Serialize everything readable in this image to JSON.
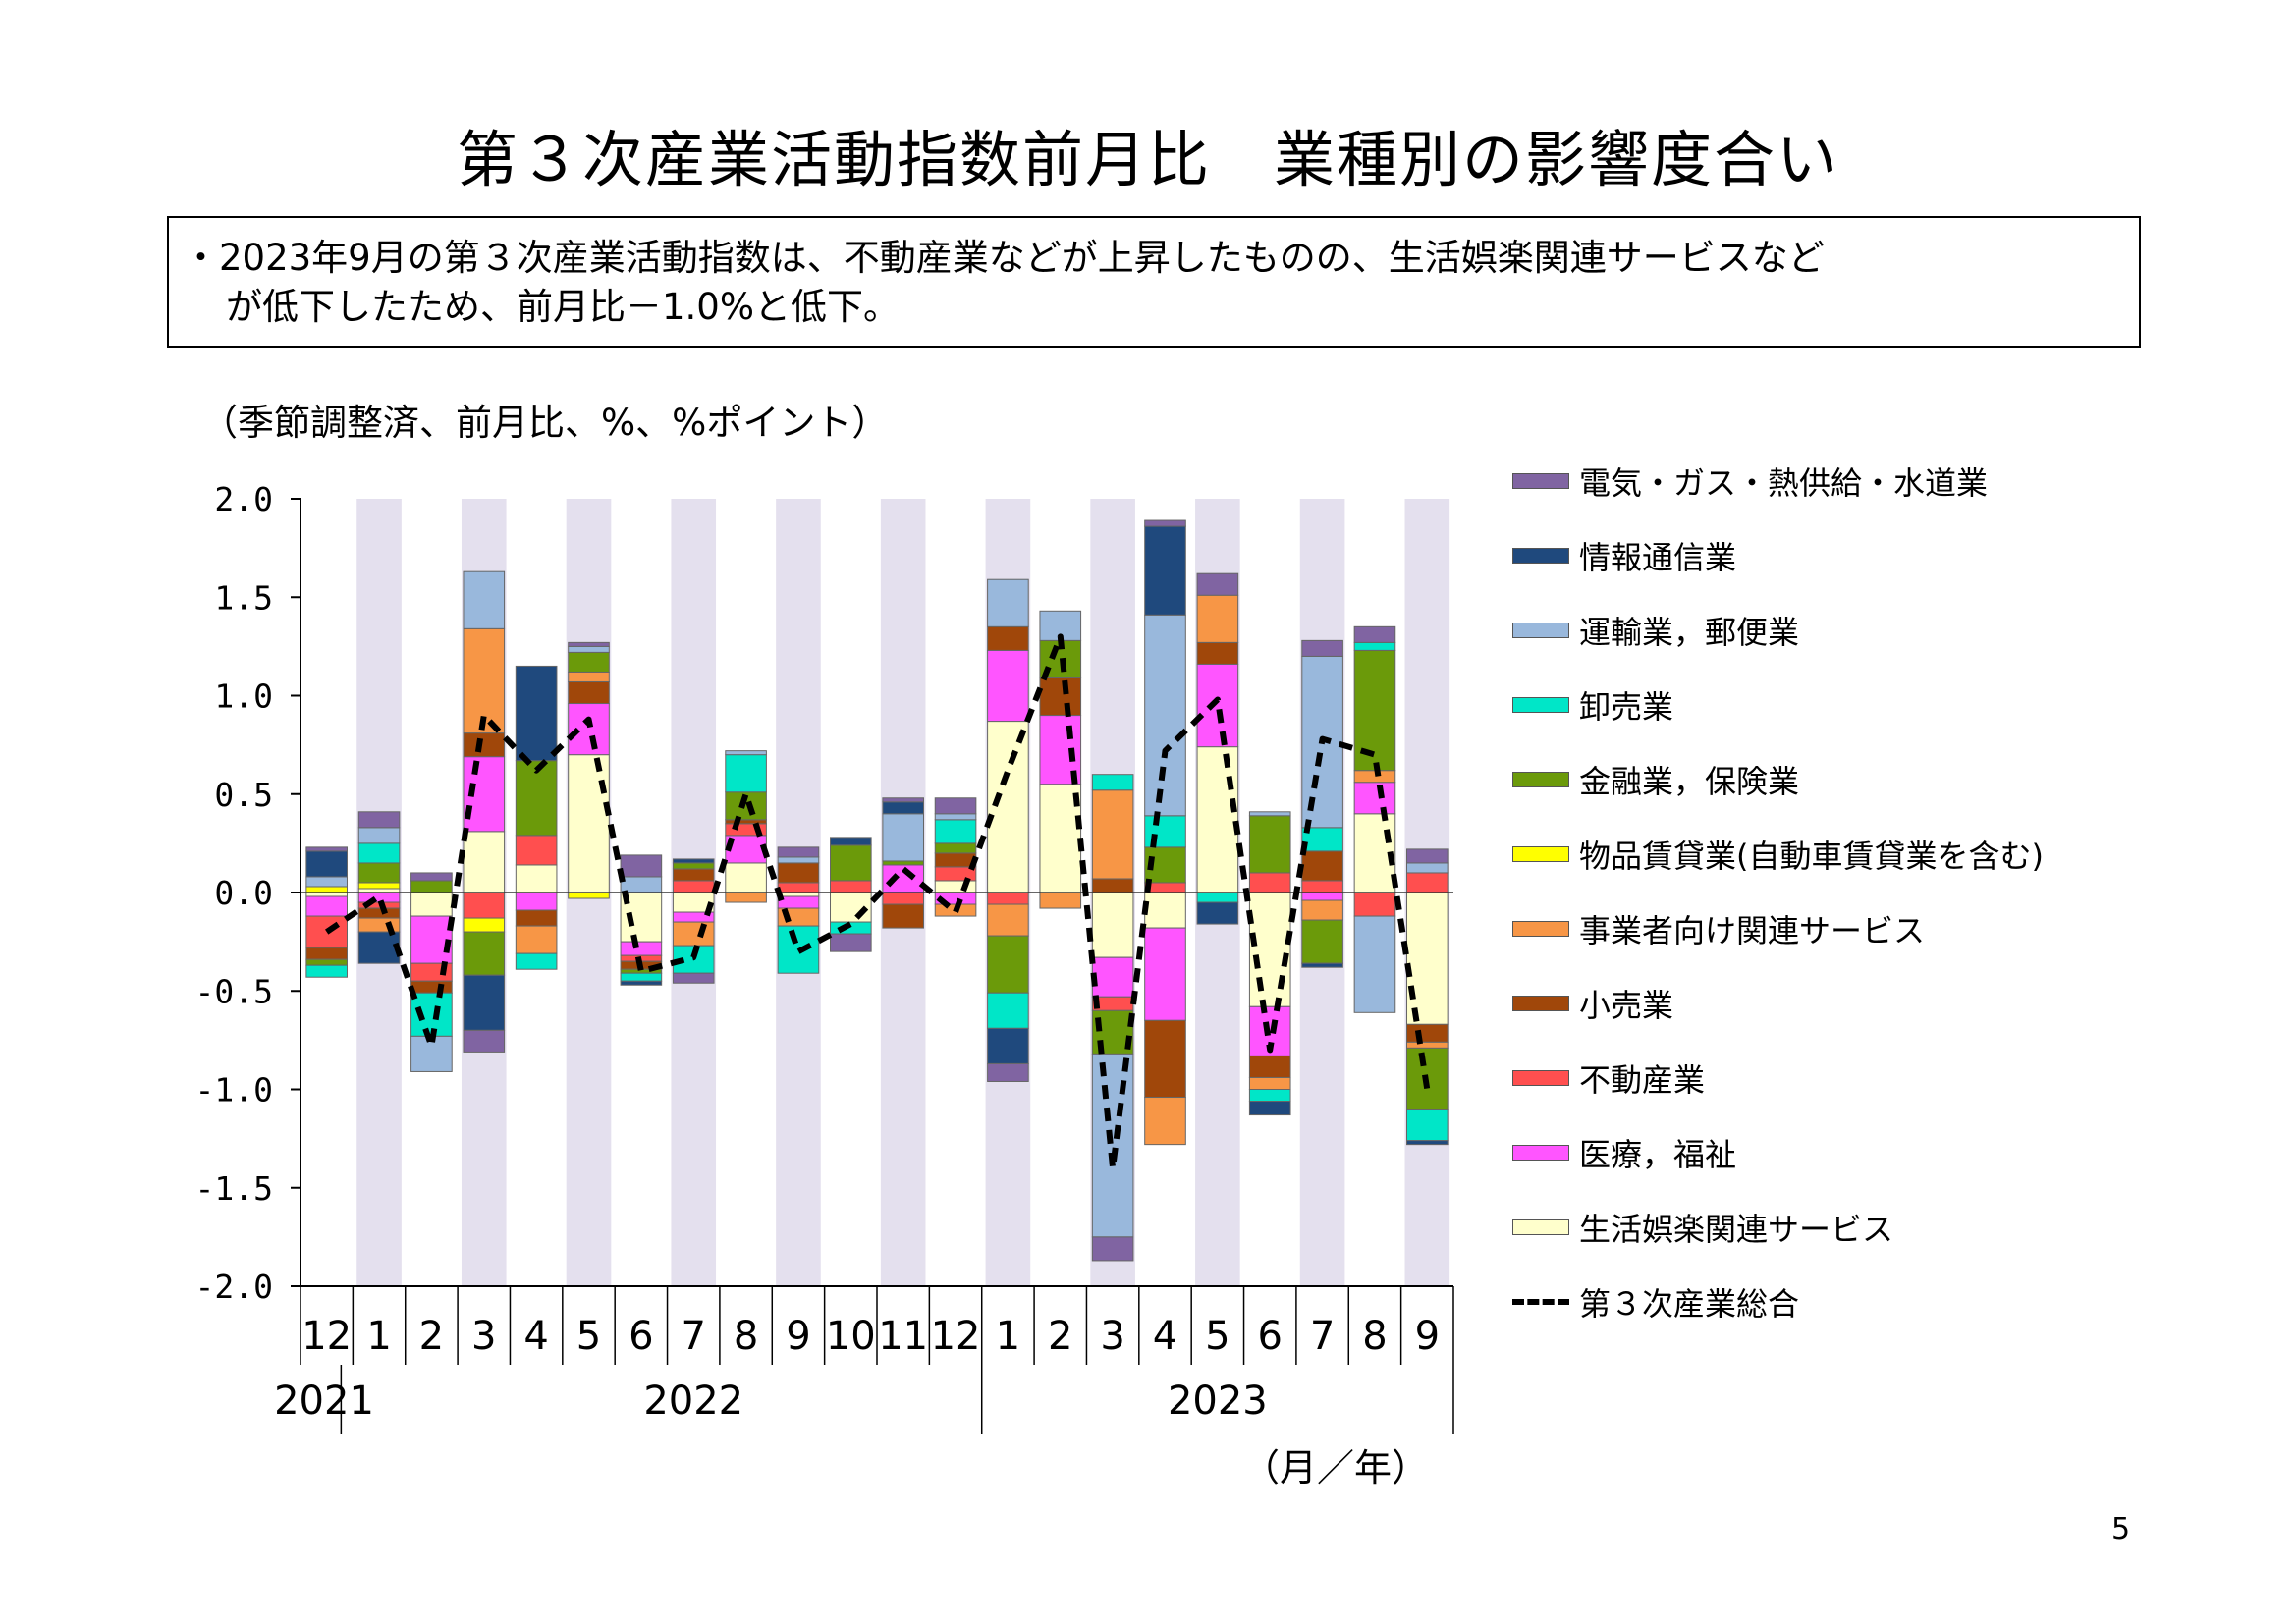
{
  "title": "第３次産業活動指数前月比　業種別の影響度合い",
  "summary": {
    "line1": "・2023年9月の第３次産業活動指数は、不動産業などが上昇したものの、生活娯楽関連サービスなど",
    "line2": "が低下したため、前月比－1.0%と低下。"
  },
  "unit_label": "（季節調整済、前月比、%、%ポイント）",
  "page_number": "5",
  "chart_data": {
    "type": "bar",
    "stacked": true,
    "title": "第３次産業活動指数前月比　業種別の影響度合い",
    "ylim": [
      -2.0,
      2.0
    ],
    "y_ticks": [
      "2.0",
      "1.5",
      "1.0",
      "0.5",
      "0.0",
      "-0.5",
      "-1.0",
      "-1.5",
      "-2.0"
    ],
    "categories": [
      "12",
      "1",
      "2",
      "3",
      "4",
      "5",
      "6",
      "7",
      "8",
      "9",
      "10",
      "11",
      "12",
      "1",
      "2",
      "3",
      "4",
      "5",
      "6",
      "7",
      "8",
      "9"
    ],
    "year_labels": [
      {
        "label": "2021",
        "index": 0
      },
      {
        "label": "2022",
        "index": 7
      },
      {
        "label": "2023",
        "index": 17
      }
    ],
    "x_unit": "（月／年）",
    "series": [
      {
        "name": "生活娯楽関連サービス",
        "color": "#FFFFCC",
        "values": [
          -0.02,
          0.02,
          -0.12,
          0.31,
          0.14,
          0.7,
          -0.25,
          -0.1,
          0.15,
          -0.02,
          -0.15,
          0.0,
          0.06,
          0.87,
          0.55,
          -0.33,
          -0.18,
          0.74,
          -0.58,
          0.0,
          0.4,
          -0.67
        ]
      },
      {
        "name": "医療，福祉",
        "color": "#FF55FF",
        "values": [
          -0.1,
          -0.05,
          -0.24,
          0.38,
          -0.09,
          0.26,
          -0.07,
          -0.05,
          0.14,
          -0.06,
          0.0,
          0.14,
          -0.06,
          0.36,
          0.35,
          -0.2,
          -0.47,
          0.42,
          -0.25,
          -0.04,
          0.16,
          0.0
        ]
      },
      {
        "name": "不動産業",
        "color": "#FF4F4F",
        "values": [
          -0.16,
          -0.03,
          -0.09,
          -0.13,
          0.15,
          0.0,
          -0.03,
          0.06,
          0.06,
          0.05,
          0.06,
          -0.06,
          0.07,
          -0.06,
          0.0,
          -0.07,
          0.05,
          0.0,
          0.1,
          0.06,
          -0.12,
          0.1
        ]
      },
      {
        "name": "小売業",
        "color": "#A0470A",
        "values": [
          -0.06,
          -0.05,
          -0.06,
          0.12,
          -0.08,
          0.11,
          -0.04,
          0.06,
          0.02,
          0.1,
          0.0,
          -0.12,
          0.07,
          0.12,
          0.19,
          0.07,
          -0.39,
          0.11,
          -0.11,
          0.15,
          0.0,
          -0.09
        ]
      },
      {
        "name": "事業者向け関連サービス",
        "color": "#F79646",
        "values": [
          0.0,
          -0.07,
          0.0,
          0.53,
          -0.14,
          0.05,
          0.0,
          -0.12,
          -0.05,
          -0.09,
          0.0,
          0.0,
          -0.06,
          -0.16,
          -0.08,
          0.45,
          -0.24,
          0.24,
          -0.06,
          -0.1,
          0.06,
          -0.03
        ]
      },
      {
        "name": "物品賃貸業（自動車賃貸業を含む）",
        "color": "#FFFF00",
        "values": [
          0.03,
          0.03,
          0.0,
          -0.07,
          0.0,
          -0.03,
          0.0,
          0.0,
          0.0,
          0.0,
          0.0,
          0.0,
          0.0,
          0.0,
          0.0,
          0.0,
          0.0,
          0.0,
          0.0,
          0.0,
          0.0,
          0.0
        ]
      },
      {
        "name": "金融業，保険業",
        "color": "#6B9A0A",
        "values": [
          -0.03,
          0.1,
          0.06,
          -0.22,
          0.38,
          0.1,
          -0.02,
          0.03,
          0.14,
          0.0,
          0.18,
          0.02,
          0.05,
          -0.29,
          0.19,
          -0.22,
          0.18,
          0.0,
          0.29,
          -0.22,
          0.61,
          -0.31
        ]
      },
      {
        "name": "卸売業",
        "color": "#00E6C8",
        "values": [
          -0.06,
          0.1,
          -0.22,
          0.0,
          -0.08,
          0.0,
          -0.04,
          -0.14,
          0.19,
          -0.24,
          -0.06,
          0.0,
          0.12,
          -0.18,
          0.0,
          0.08,
          0.16,
          -0.05,
          -0.06,
          0.12,
          0.04,
          -0.16
        ]
      },
      {
        "name": "運輸業，郵便業",
        "color": "#99B8DC",
        "values": [
          0.05,
          0.08,
          -0.18,
          0.29,
          0.0,
          0.03,
          0.08,
          0.0,
          0.02,
          0.03,
          0.0,
          0.24,
          0.03,
          0.24,
          0.15,
          -0.93,
          1.02,
          0.0,
          0.02,
          0.87,
          -0.49,
          0.05
        ]
      },
      {
        "name": "情報通信業",
        "color": "#1F497D",
        "values": [
          0.13,
          -0.16,
          0.0,
          -0.28,
          0.48,
          0.0,
          -0.02,
          0.02,
          0.0,
          0.0,
          0.04,
          0.06,
          0.0,
          -0.18,
          0.0,
          0.0,
          0.45,
          -0.11,
          -0.07,
          -0.02,
          0.0,
          -0.02
        ]
      },
      {
        "name": "電気・ガス・熱供給・水道業",
        "color": "#8064A2",
        "values": [
          0.02,
          0.08,
          0.04,
          -0.11,
          0.0,
          0.02,
          0.11,
          -0.05,
          0.0,
          0.05,
          -0.09,
          0.02,
          0.08,
          -0.09,
          0.0,
          -0.12,
          0.03,
          0.11,
          0.0,
          0.08,
          0.08,
          0.07
        ]
      }
    ],
    "total": {
      "name": "第３次産業総合",
      "values": [
        -0.2,
        -0.02,
        -0.78,
        0.9,
        0.62,
        0.88,
        -0.4,
        -0.33,
        0.5,
        -0.3,
        -0.16,
        0.12,
        -0.1,
        0.62,
        1.3,
        -1.4,
        0.72,
        0.98,
        -0.8,
        0.78,
        0.7,
        -1.0
      ]
    }
  },
  "legend_order": [
    "電気・ガス・熱供給・水道業",
    "情報通信業",
    "運輸業，郵便業",
    "卸売業",
    "金融業，保険業",
    "物品賃貸業（自動車賃貸業を含む）",
    "事業者向け関連サービス",
    "小売業",
    "不動産業",
    "医療，福祉",
    "生活娯楽関連サービス"
  ],
  "legend_labels": {
    "電気・ガス・熱供給・水道業": "電気・ガス・熱供給・水道業",
    "情報通信業": "情報通信業",
    "運輸業，郵便業": "運輸業，郵便業",
    "卸売業": "卸売業",
    "金融業，保険業": "金融業，保険業",
    "物品賃貸業（自動車賃貸業を含む）": "物品賃貸業(自動車賃貸業を含む)",
    "事業者向け関連サービス": "事業者向け関連サービス",
    "小売業": "小売業",
    "不動産業": "不動産業",
    "医療，福祉": "医療，福祉",
    "生活娯楽関連サービス": "生活娯楽関連サービス",
    "total": "第３次産業総合"
  }
}
